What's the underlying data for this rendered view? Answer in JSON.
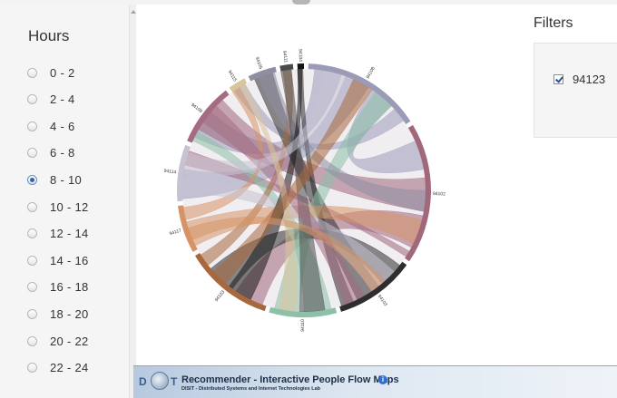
{
  "sidebar": {
    "title": "Hours",
    "selected": "8 - 10",
    "items": [
      "0 - 2",
      "2 - 4",
      "4 - 6",
      "6 - 8",
      "8 - 10",
      "10 - 12",
      "12 - 14",
      "14 - 16",
      "16 - 18",
      "18 - 20",
      "20 - 22",
      "22 - 24"
    ]
  },
  "filters": {
    "title": "Filters",
    "items": [
      {
        "label": "94123",
        "checked": true
      }
    ]
  },
  "chord": {
    "groups": [
      {
        "label": "94108",
        "color": "#9b9bb8"
      },
      {
        "label": "94102",
        "color": "#a1687c"
      },
      {
        "label": "94103",
        "color": "#2e2e2e"
      },
      {
        "label": "94110",
        "color": "#8cc0a8"
      },
      {
        "label": "94133",
        "color": "#a7683d"
      },
      {
        "label": "94117",
        "color": "#d59366"
      },
      {
        "label": "94114",
        "color": "#c7c2d2"
      },
      {
        "label": "94109",
        "color": "#a46b81"
      },
      {
        "label": "94115",
        "color": "#d8c59a"
      },
      {
        "label": "94105",
        "color": "#8e8ea2"
      },
      {
        "label": "94111",
        "color": "#4a4a4a"
      },
      {
        "label": "94104",
        "color": "#151515"
      }
    ]
  },
  "footer": {
    "logo_left": "D",
    "logo_right": "T",
    "title": "Recommender - Interactive People Flow Maps",
    "subtitle": "DISIT - Distributed Systems and Internet Technologies Lab",
    "info_icon": "i"
  }
}
